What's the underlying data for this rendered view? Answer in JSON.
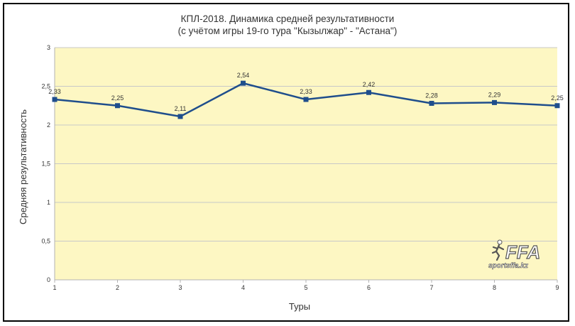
{
  "chart_data": {
    "type": "line",
    "title": "КПЛ-2018. Динамика средней результативности",
    "subtitle": "(с учётом игры 19-го тура \"Кызылжар\" - \"Астана\")",
    "xlabel": "Туры",
    "ylabel": "Средняя результативность",
    "x": [
      1,
      2,
      3,
      4,
      5,
      6,
      7,
      8,
      9
    ],
    "x_tick_labels": [
      "1",
      "2",
      "3",
      "4",
      "5",
      "6",
      "7",
      "8",
      "9"
    ],
    "series": [
      {
        "values": [
          2.33,
          2.25,
          2.11,
          2.54,
          2.33,
          2.42,
          2.28,
          2.29,
          2.25
        ],
        "data_labels": [
          "2,33",
          "2,25",
          "2,11",
          "2,54",
          "2,33",
          "2,42",
          "2,28",
          "2,29",
          "2,25"
        ],
        "color": "#1f4e8c"
      }
    ],
    "ylim": [
      0,
      3
    ],
    "y_ticks": [
      0,
      0.5,
      1,
      1.5,
      2,
      2.5,
      3
    ],
    "y_tick_labels": [
      "0",
      "0,5",
      "1",
      "1,5",
      "2",
      "2,5",
      "3"
    ],
    "grid": true,
    "legend": "none",
    "plot_background": "#fdf7c3",
    "grid_color": "#c8c8c8"
  },
  "watermark": {
    "logo_text": "FFA",
    "site": "sportsffa.kz"
  }
}
